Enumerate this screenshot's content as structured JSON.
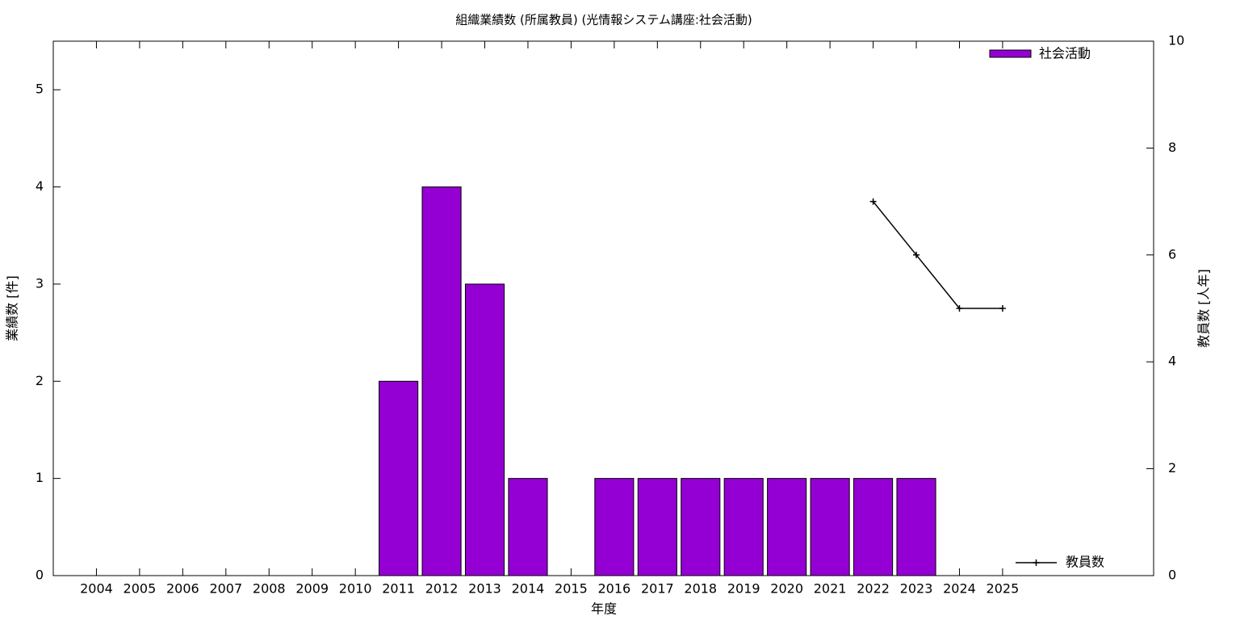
{
  "chart_data": {
    "type": "bar",
    "title": "組織業績数 (所属教員) (光情報システム講座:社会活動)",
    "xlabel": "年度",
    "ylabel": "業績数 [件]",
    "y2label": "教員数 [人年]",
    "categories": [
      "2004",
      "2005",
      "2006",
      "2007",
      "2008",
      "2009",
      "2010",
      "2011",
      "2012",
      "2013",
      "2014",
      "2015",
      "2016",
      "2017",
      "2018",
      "2019",
      "2020",
      "2021",
      "2022",
      "2023",
      "2024",
      "2025"
    ],
    "series": [
      {
        "name": "社会活動",
        "type": "bar",
        "color": "#9400d3",
        "values": [
          0,
          0,
          0,
          0,
          0,
          0,
          0,
          2,
          4,
          3,
          1,
          0,
          1,
          1,
          1,
          1,
          1,
          1,
          1,
          1,
          0,
          0
        ]
      },
      {
        "name": "教員数",
        "type": "line",
        "color": "#000000",
        "axis": "y2",
        "values": [
          null,
          null,
          null,
          null,
          null,
          null,
          null,
          null,
          null,
          null,
          null,
          null,
          null,
          null,
          null,
          null,
          null,
          null,
          7,
          6,
          5,
          5
        ]
      }
    ],
    "ylim": [
      0,
      5.5
    ],
    "yticks": [
      0,
      1,
      2,
      3,
      4,
      5
    ],
    "y2lim": [
      0,
      10
    ],
    "y2ticks": [
      0,
      2,
      4,
      6,
      8,
      10
    ]
  }
}
